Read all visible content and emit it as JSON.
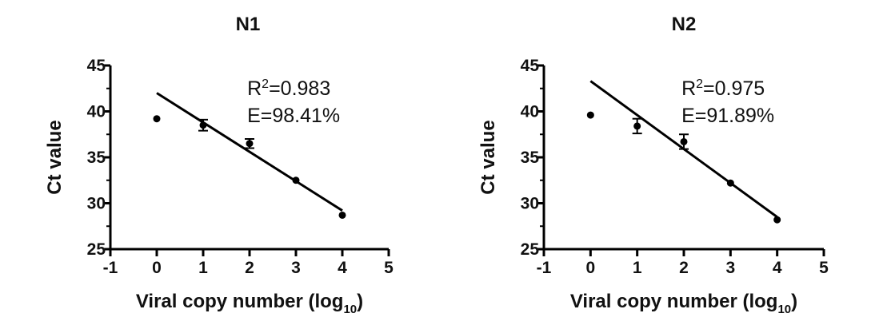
{
  "chart_data": [
    {
      "type": "scatter",
      "title": "N1",
      "xlabel": "Viral copy number (log",
      "xlabel_sub": "10",
      "xlabel_end": ")",
      "ylabel": "Ct value",
      "xlim": [
        -1,
        5
      ],
      "ylim": [
        25,
        45
      ],
      "xticks": [
        "-1",
        "0",
        "1",
        "2",
        "3",
        "4",
        "5"
      ],
      "yticks": [
        "25",
        "30",
        "35",
        "40",
        "45"
      ],
      "points": [
        {
          "x": 0,
          "y": 39.2,
          "err": 0
        },
        {
          "x": 1,
          "y": 38.5,
          "err": 0.6
        },
        {
          "x": 2,
          "y": 36.5,
          "err": 0.5
        },
        {
          "x": 3,
          "y": 32.5,
          "err": 0
        },
        {
          "x": 4,
          "y": 28.7,
          "err": 0
        }
      ],
      "fit_line": {
        "x": [
          0,
          4
        ],
        "y": [
          42.0,
          29.2
        ]
      },
      "annotations": {
        "r2_prefix": "R",
        "r2_sup": "2",
        "r2_value": "=0.983",
        "efficiency": "E=98.41%"
      },
      "grid": false
    },
    {
      "type": "scatter",
      "title": "N2",
      "xlabel": "Viral copy number (log",
      "xlabel_sub": "10",
      "xlabel_end": ")",
      "ylabel": "Ct value",
      "xlim": [
        -1,
        5
      ],
      "ylim": [
        25,
        45
      ],
      "xticks": [
        "-1",
        "0",
        "1",
        "2",
        "3",
        "4",
        "5"
      ],
      "yticks": [
        "25",
        "30",
        "35",
        "40",
        "45"
      ],
      "points": [
        {
          "x": 0,
          "y": 39.6,
          "err": 0
        },
        {
          "x": 1,
          "y": 38.4,
          "err": 0.8
        },
        {
          "x": 2,
          "y": 36.7,
          "err": 0.8
        },
        {
          "x": 3,
          "y": 32.2,
          "err": 0
        },
        {
          "x": 4,
          "y": 28.2,
          "err": 0
        }
      ],
      "fit_line": {
        "x": [
          0,
          4
        ],
        "y": [
          43.3,
          28.5
        ]
      },
      "annotations": {
        "r2_prefix": "R",
        "r2_sup": "2",
        "r2_value": "=0.975",
        "efficiency": "E=91.89%"
      },
      "grid": false
    }
  ]
}
